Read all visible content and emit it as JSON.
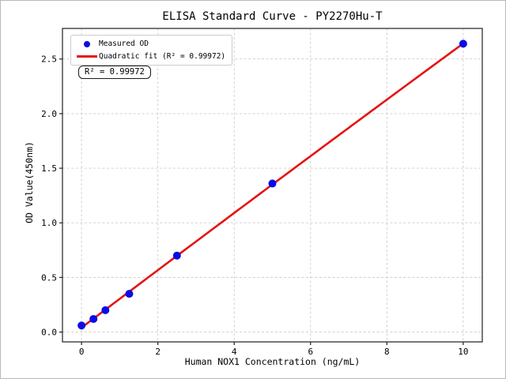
{
  "figure": {
    "title": "ELISA Standard Curve - PY2270Hu-T",
    "background": "#ffffff"
  },
  "chart_data": {
    "type": "scatter",
    "title": "ELISA Standard Curve - PY2270Hu-T",
    "xlabel": "Human NOX1 Concentration (ng/mL)",
    "ylabel": "OD Value(450nm)",
    "x": [
      0,
      0.3125,
      0.625,
      1.25,
      2.5,
      5,
      10
    ],
    "series": [
      {
        "name": "Measured OD",
        "type": "scatter",
        "marker": "circle",
        "color": "#0b0be6",
        "values": [
          0.06,
          0.12,
          0.2,
          0.35,
          0.7,
          1.36,
          2.64
        ]
      },
      {
        "name": "Quadratic fit (R² = 0.99972)",
        "type": "line",
        "fit": "quadratic",
        "color": "#e61212",
        "r_squared": 0.99972
      }
    ],
    "xlim": [
      -0.5,
      10.5
    ],
    "ylim": [
      -0.09,
      2.78
    ],
    "xticks": [
      0,
      2,
      4,
      6,
      8,
      10
    ],
    "xtick_labels": [
      "0",
      "2",
      "4",
      "6",
      "8",
      "10"
    ],
    "yticks": [
      0,
      0.5,
      1,
      1.5,
      2,
      2.5
    ],
    "ytick_labels": [
      "0.0",
      "0.5",
      "1.0",
      "1.5",
      "2.0",
      "2.5"
    ],
    "grid": true,
    "grid_style": "dashed",
    "grid_color": "#cccccc",
    "spine_color": "#1f1f1f",
    "legend_position": "upper left",
    "annotation": "R² = 0.99972"
  }
}
